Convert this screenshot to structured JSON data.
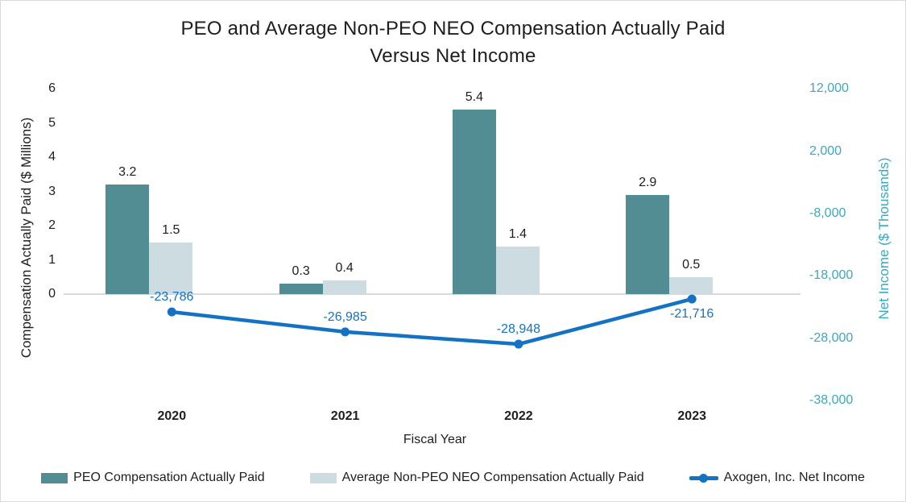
{
  "title": "PEO and Average Non-PEO NEO Compensation Actually Paid Versus Net Income",
  "title_lines": {
    "line1": "PEO and Average Non-PEO NEO Compensation Actually Paid",
    "line2": "Versus Net Income"
  },
  "colors": {
    "peo_bar": "#528D93",
    "neo_bar": "#CDDCE0",
    "net_income_line": "#1372C4",
    "right_axis_text": "#3BA8BD",
    "gridline": "#D9D9D9",
    "text": "#1E1E1E"
  },
  "chart_data": {
    "type": "bar",
    "subtype": "combo-bar-line-dual-axis",
    "categories": [
      "2020",
      "2021",
      "2022",
      "2023"
    ],
    "series": [
      {
        "name": "PEO Compensation Actually Paid",
        "type": "bar",
        "axis": "left",
        "color": "#528D93",
        "values": [
          3.2,
          0.3,
          5.4,
          2.9
        ],
        "labels": [
          "3.2",
          "0.3",
          "5.4",
          "2.9"
        ]
      },
      {
        "name": "Average Non-PEO NEO Compensation Actually Paid",
        "type": "bar",
        "axis": "left",
        "color": "#CDDCE0",
        "values": [
          1.5,
          0.4,
          1.4,
          0.5
        ],
        "labels": [
          "1.5",
          "0.4",
          "1.4",
          "0.5"
        ]
      },
      {
        "name": "Axogen, Inc. Net Income",
        "type": "line",
        "axis": "right",
        "color": "#1372C4",
        "values": [
          -23786,
          -26985,
          -28948,
          -21716
        ],
        "labels": [
          "-23,786",
          "-26,985",
          "-28,948",
          "-21,716"
        ],
        "label_positions": [
          "above",
          "above",
          "above",
          "below"
        ]
      }
    ],
    "left_axis": {
      "title": "Compensation Actually Paid ($ Millions)",
      "ticks": [
        "6",
        "5",
        "4",
        "3",
        "2",
        "1",
        "0"
      ],
      "tick_values": [
        6,
        5,
        4,
        3,
        2,
        1,
        0
      ],
      "min": 0,
      "max": 6
    },
    "right_axis": {
      "title": "Net Income ($ Thousands)",
      "ticks": [
        "12,000",
        "2,000",
        "-8,000",
        "-18,000",
        "-28,000",
        "-38,000"
      ],
      "tick_values": [
        12000,
        2000,
        -8000,
        -18000,
        -28000,
        -38000
      ],
      "min": -38000,
      "max": 12000
    },
    "x_axis": {
      "title": "Fiscal Year"
    },
    "grid": "zero-line-only",
    "legend_position": "bottom"
  }
}
